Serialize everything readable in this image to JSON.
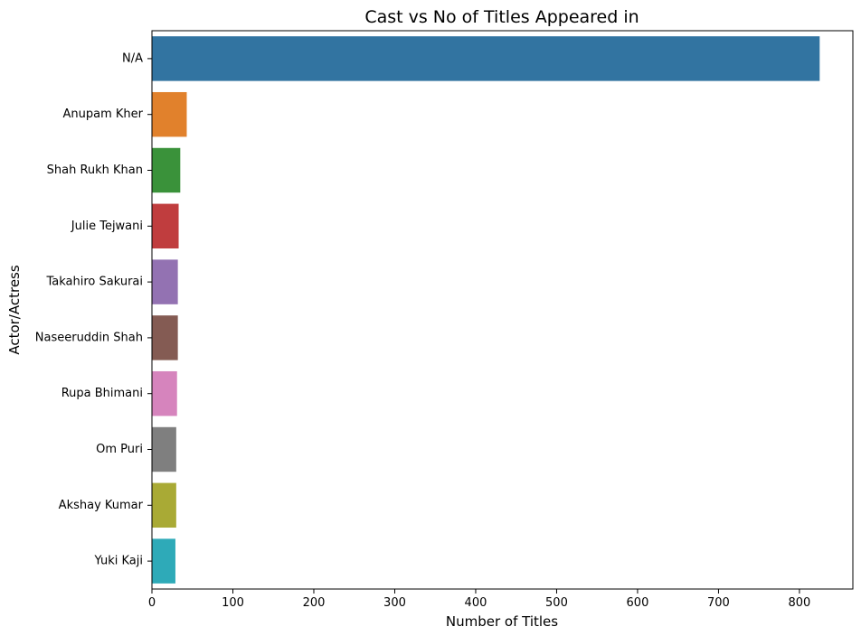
{
  "chart_data": {
    "type": "bar",
    "orientation": "horizontal",
    "title": "Cast vs No of Titles Appeared in",
    "xlabel": "Number of Titles",
    "ylabel": "Actor/Actress",
    "categories": [
      "N/A",
      "Anupam Kher",
      "Shah Rukh Khan",
      "Julie Tejwani",
      "Takahiro Sakurai",
      "Naseeruddin Shah",
      "Rupa Bhimani",
      "Om Puri",
      "Akshay Kumar",
      "Yuki Kaji"
    ],
    "values": [
      825,
      43,
      35,
      33,
      32,
      32,
      31,
      30,
      30,
      29
    ],
    "colors": [
      "#3274a1",
      "#e1812c",
      "#3a923a",
      "#c03d3e",
      "#9372b2",
      "#845b53",
      "#d684bd",
      "#7f7f7f",
      "#a9aa35",
      "#2eaab8"
    ],
    "xlim": [
      0,
      866
    ],
    "xticks": [
      0,
      100,
      200,
      300,
      400,
      500,
      600,
      700,
      800
    ],
    "grid": false,
    "legend": "none"
  }
}
